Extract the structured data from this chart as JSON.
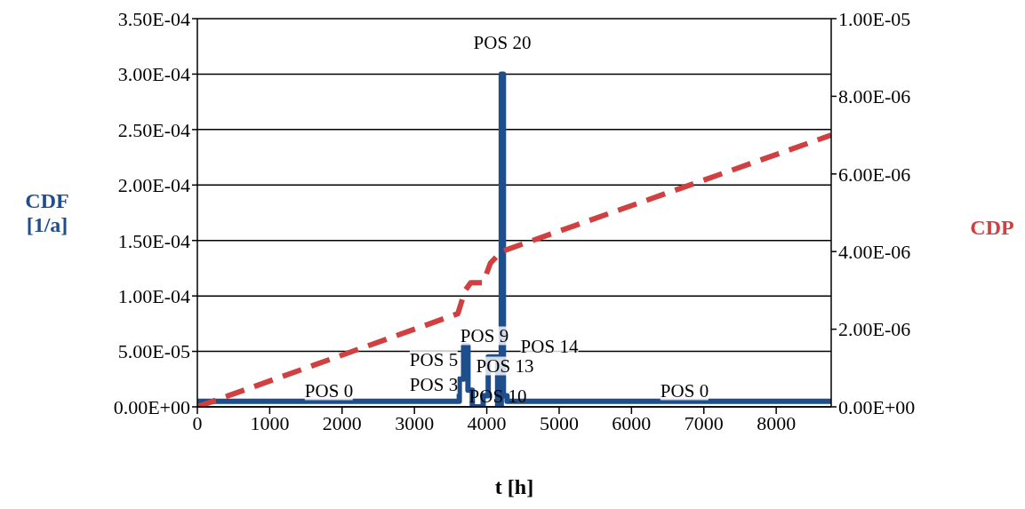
{
  "chart_data": {
    "type": "line",
    "xlabel": "t [h]",
    "ylabel": "CDF [1/a]",
    "y2label": "CDP",
    "xlim": [
      0,
      8760
    ],
    "xticks": [
      0,
      1000,
      2000,
      3000,
      4000,
      5000,
      6000,
      7000,
      8000
    ],
    "ylim": [
      0,
      0.00035
    ],
    "yticks": [
      {
        "value": 0,
        "label": "0.00E+00"
      },
      {
        "value": 5e-05,
        "label": "5.00E-05"
      },
      {
        "value": 0.0001,
        "label": "1.00E-04"
      },
      {
        "value": 0.00015,
        "label": "1.50E-04"
      },
      {
        "value": 0.0002,
        "label": "2.00E-04"
      },
      {
        "value": 0.00025,
        "label": "2.50E-04"
      },
      {
        "value": 0.0003,
        "label": "3.00E-04"
      },
      {
        "value": 0.00035,
        "label": "3.50E-04"
      }
    ],
    "y2lim": [
      0,
      1e-05
    ],
    "y2ticks": [
      {
        "value": 0,
        "label": "0.00E+00"
      },
      {
        "value": 2e-06,
        "label": "2.00E-06"
      },
      {
        "value": 4e-06,
        "label": "4.00E-06"
      },
      {
        "value": 6e-06,
        "label": "6.00E-06"
      },
      {
        "value": 8e-06,
        "label": "8.00E-06"
      },
      {
        "value": 1e-05,
        "label": "1.00E-05"
      }
    ],
    "grid": "y",
    "legend": false,
    "marker": "none",
    "series": [
      {
        "type": "step",
        "color": "#1f4e8c",
        "line_style": "solid",
        "x": [
          0,
          3620,
          3680,
          3740,
          3800,
          3950,
          4020,
          4150,
          4200,
          4230,
          4280,
          8760
        ],
        "values": [
          5e-06,
          2.5e-05,
          5.5e-05,
          1.5e-05,
          0,
          1e-05,
          4.5e-05,
          0,
          0.0003,
          1e-05,
          5e-06,
          5e-06
        ]
      },
      {
        "axis": "y2",
        "color": "#d04040",
        "line_style": "dashed",
        "x": [
          0,
          3600,
          3700,
          3780,
          3950,
          4050,
          4200,
          8760
        ],
        "values": [
          0,
          2.4e-06,
          3e-06,
          3.2e-06,
          3.2e-06,
          3.7e-06,
          4e-06,
          7e-06
        ]
      }
    ],
    "annotations": [
      "POS 0",
      "POS 3",
      "POS 5",
      "POS 9",
      "POS 13",
      "POS 14",
      "POS 10",
      "POS 20",
      "POS 0"
    ]
  }
}
